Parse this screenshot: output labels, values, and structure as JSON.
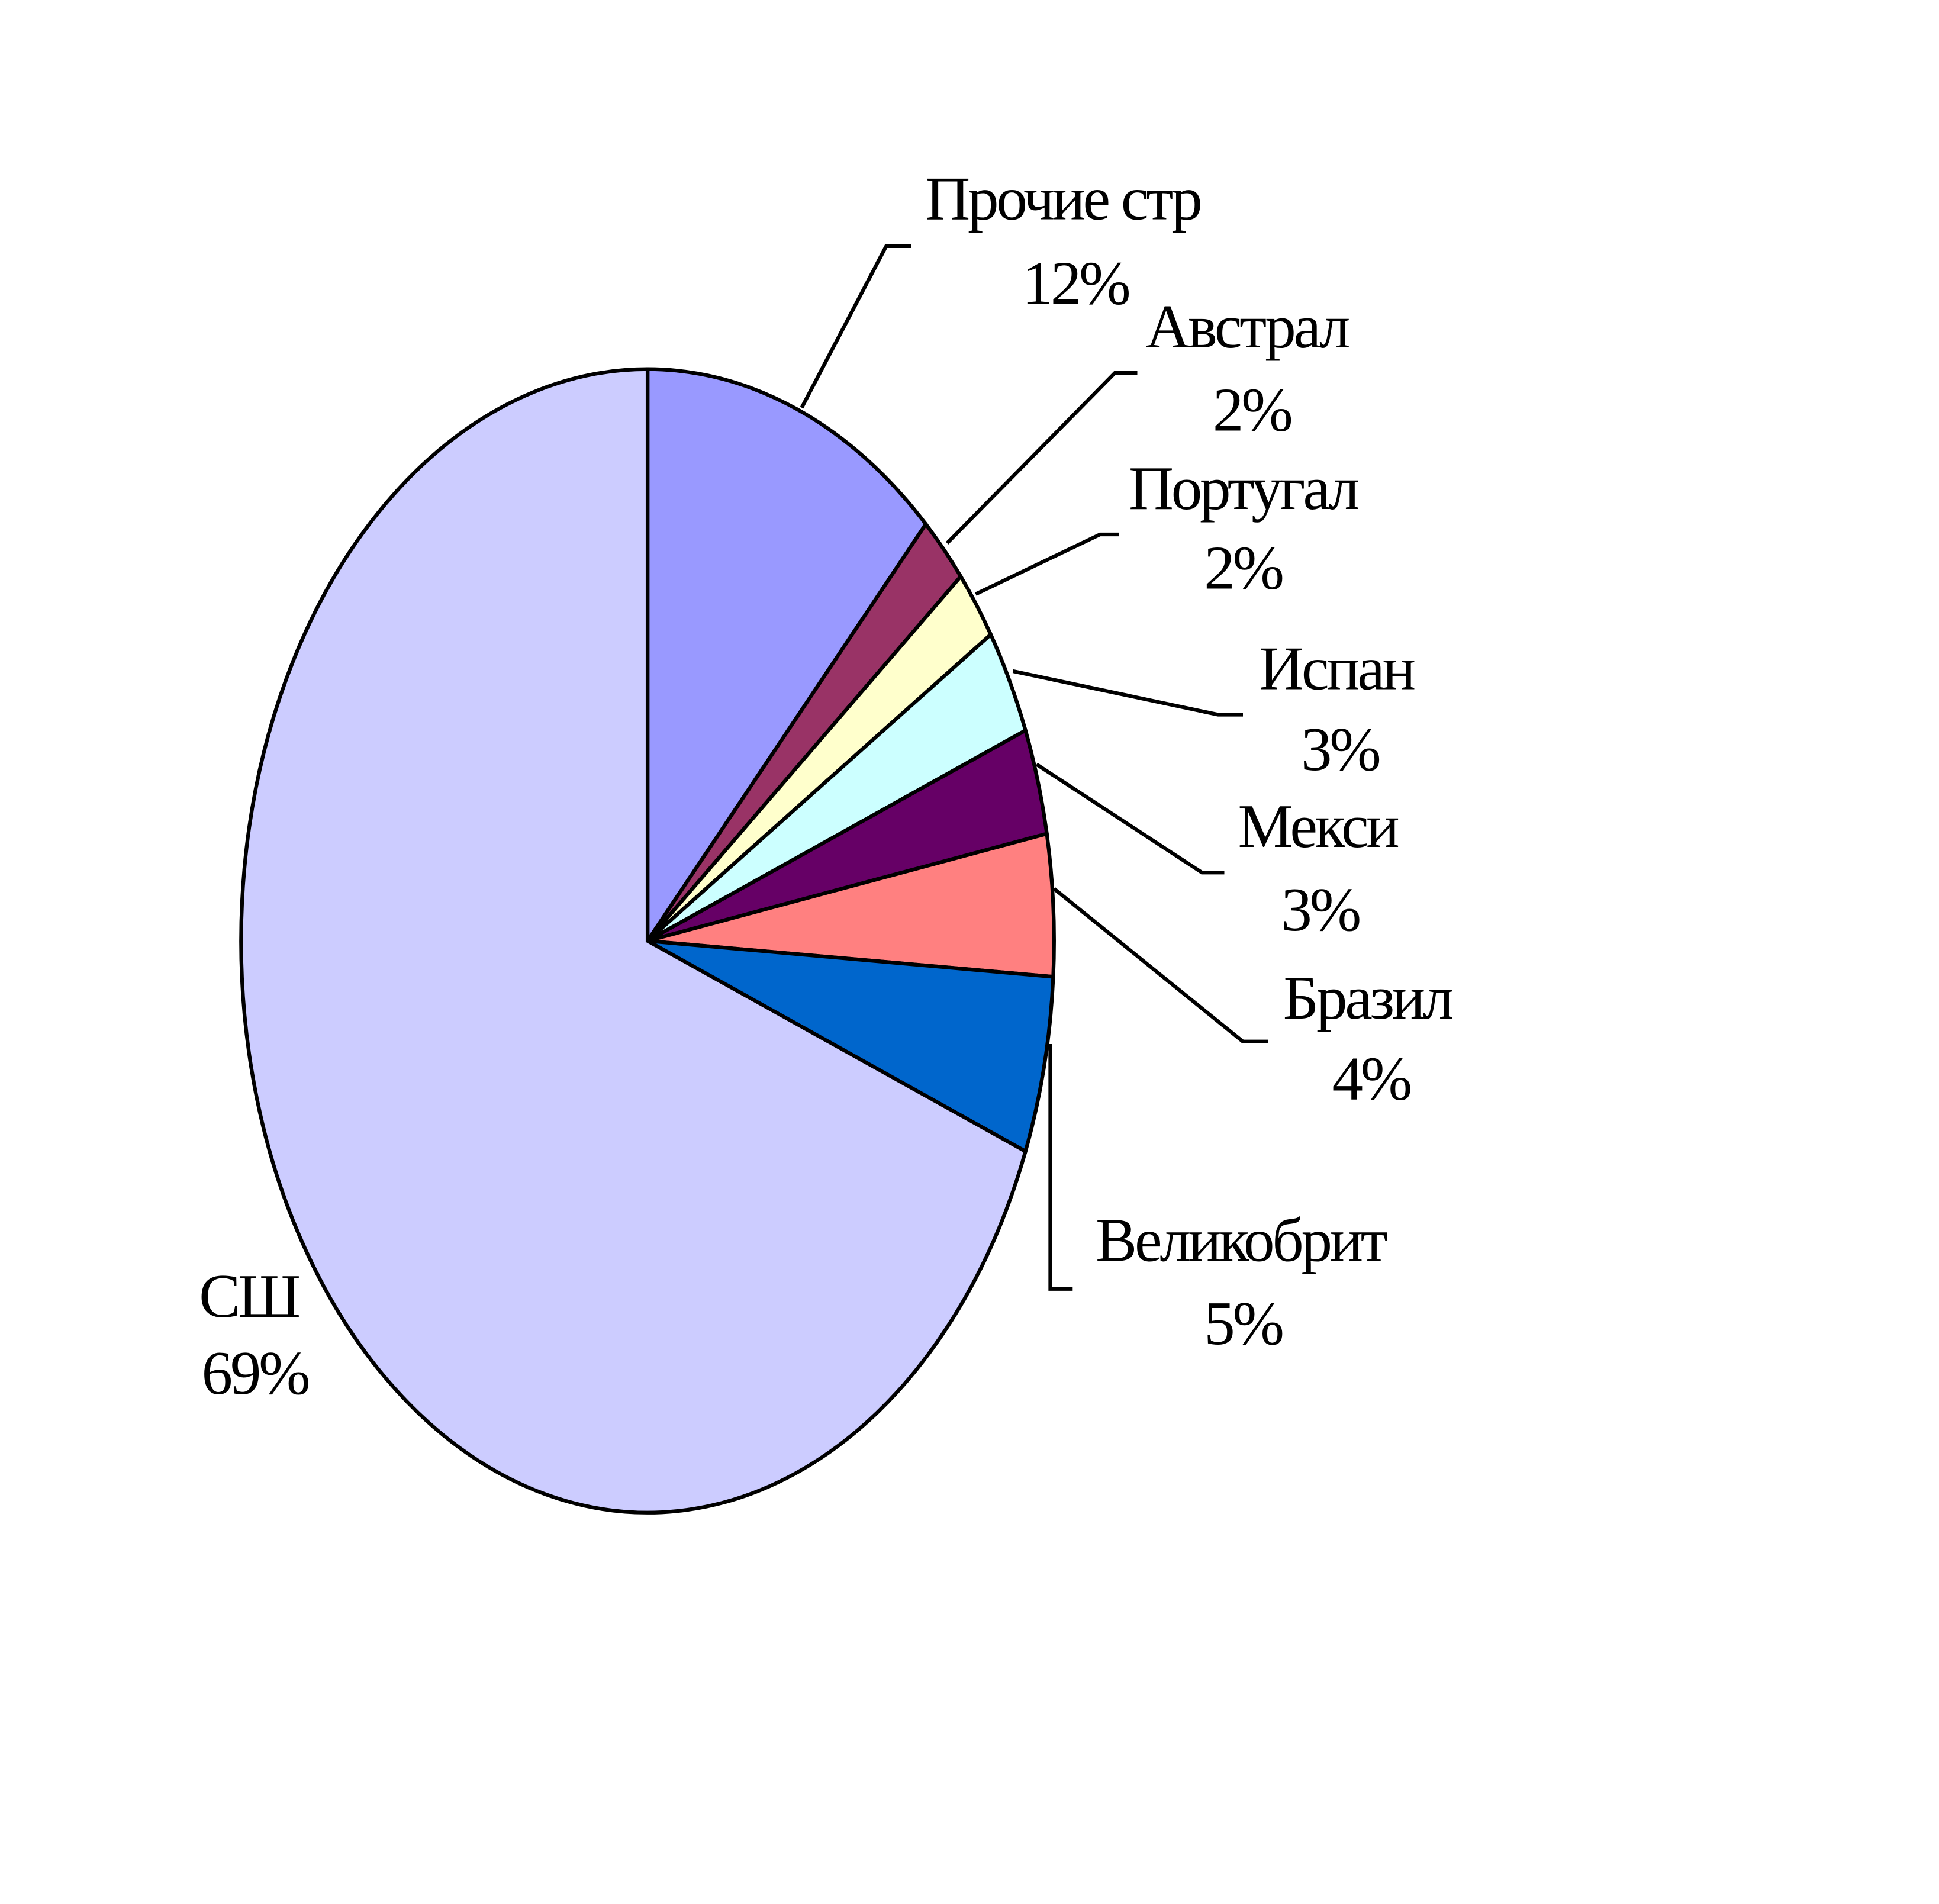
{
  "chart_data": {
    "type": "pie",
    "categories": [
      "Прочие стр",
      "Австрал",
      "Португал",
      "Испан",
      "Мекси",
      "Бразил",
      "Великобрит",
      "СШ"
    ],
    "values": [
      12,
      2,
      2,
      3,
      3,
      4,
      5,
      69
    ],
    "value_labels": [
      "12%",
      "2%",
      "2%",
      "3%",
      "3%",
      "4%",
      "5%",
      "69%"
    ],
    "colors": [
      "#9999ff",
      "#993366",
      "#ffffcc",
      "#ccffff",
      "#660066",
      "#ff8080",
      "#0066cc",
      "#ccccff"
    ]
  }
}
